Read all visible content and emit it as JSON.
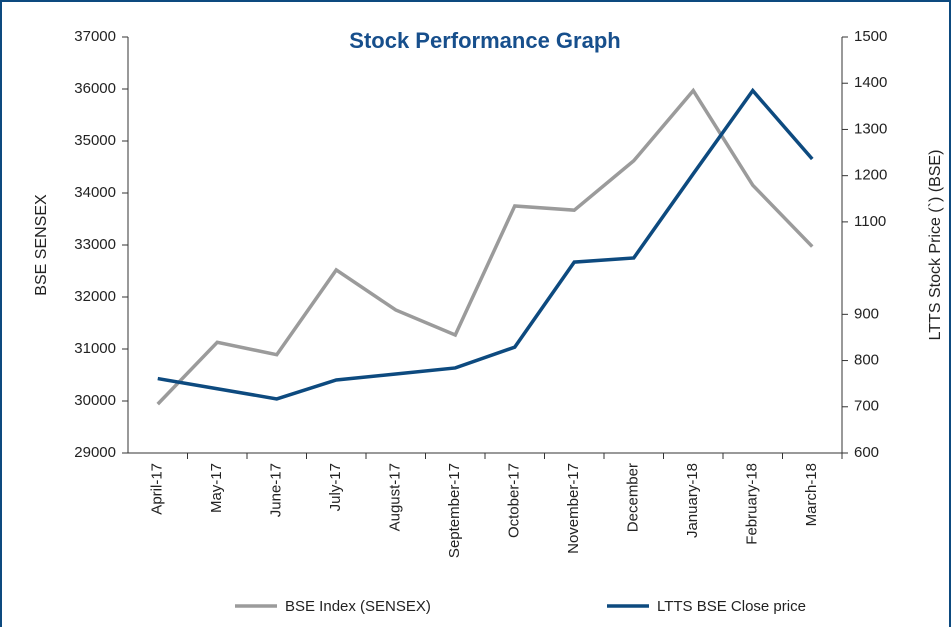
{
  "chart_data": {
    "type": "line",
    "title": "Stock Performance Graph",
    "y_label": "BSE SENSEX",
    "y2_label": "LTTS Stock Price (`) (BSE)",
    "categories": [
      "April-17",
      "May-17",
      "June-17",
      "July-17",
      "August-17",
      "September-17",
      "October-17",
      "November-17",
      "December",
      "January-18",
      "February-18",
      "March-18"
    ],
    "series": [
      {
        "name": "BSE Index (SENSEX)",
        "color": "#9b9b9b",
        "values": [
          29940,
          31130,
          30890,
          32520,
          31750,
          31270,
          33750,
          33670,
          34620,
          35970,
          34150,
          32970
        ]
      },
      {
        "name": "LTTS BSE Close price",
        "color": "#0d4a7f",
        "axis": "y2",
        "values": [
          761,
          739,
          717,
          758,
          771,
          784,
          829,
          1013,
          1022,
          1204,
          1384,
          1236
        ]
      }
    ],
    "ylim": [
      29000,
      37000
    ],
    "yticks": [
      29000,
      30000,
      31000,
      32000,
      33000,
      34000,
      35000,
      36000,
      37000
    ],
    "y2lim": [
      600,
      1500
    ],
    "y2ticks": [
      600,
      700,
      800,
      900,
      1100,
      1200,
      1300,
      1400,
      1500
    ],
    "legend": "bottom"
  }
}
